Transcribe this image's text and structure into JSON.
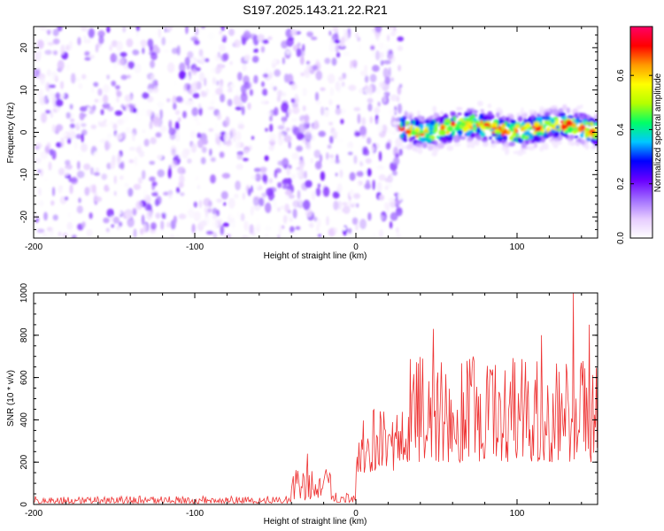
{
  "figure": {
    "title": "S197.2025.143.21.22.R21"
  },
  "chart_data": [
    {
      "type": "heatmap",
      "title": "S197.2025.143.21.22.R21",
      "xlabel": "Height of straight line (km)",
      "ylabel": "Frequency (Hz)",
      "xlim": [
        -200,
        150
      ],
      "ylim": [
        -25,
        25
      ],
      "xticks": [
        -200,
        -100,
        0,
        100
      ],
      "yticks": [
        -20,
        -10,
        0,
        10,
        20
      ],
      "colorbar": {
        "label": "Normalized spectral amplitude",
        "range": [
          0,
          0.78
        ],
        "ticks": [
          0.0,
          0.2,
          0.4,
          0.6
        ],
        "colormap": [
          "#ffffff",
          "#e6ccff",
          "#a06cff",
          "#6a00ff",
          "#0000ff",
          "#00c8ff",
          "#00ff66",
          "#b4ff00",
          "#ffff00",
          "#ff9900",
          "#ff0000",
          "#ff0066"
        ]
      },
      "regions": {
        "noise_x_range": [
          -200,
          28
        ],
        "noise_amplitude_range": [
          0.0,
          0.2
        ],
        "signal_x_range": [
          28,
          150
        ],
        "signal_frequency_band_hz": [
          -3,
          5
        ],
        "signal_peak_frequency_hz": 1,
        "signal_peak_amplitude": 0.7
      },
      "grid": false,
      "legend": "right"
    },
    {
      "type": "line",
      "xlabel": "Height of straight line (km)",
      "ylabel": "SNR (10 * v/v)",
      "xlim": [
        -200,
        150
      ],
      "ylim": [
        0,
        1000
      ],
      "xticks": [
        -200,
        -100,
        0,
        100
      ],
      "yticks": [
        0,
        200,
        400,
        600,
        800,
        1000
      ],
      "series_color": "#ee3333",
      "segments": [
        {
          "x": [
            -200,
            -40
          ],
          "baseline": 5,
          "amplitude": 35
        },
        {
          "x": [
            -40,
            -15
          ],
          "baseline": 20,
          "amplitude": 150
        },
        {
          "x": [
            -15,
            0
          ],
          "baseline": 10,
          "amplitude": 50
        },
        {
          "x": [
            0,
            30
          ],
          "baseline": 150,
          "amplitude": 300
        },
        {
          "x": [
            30,
            150
          ],
          "baseline": 200,
          "amplitude": 500
        }
      ],
      "peaks": [
        {
          "x": -30,
          "y": 240
        },
        {
          "x": 15,
          "y": 440
        },
        {
          "x": 48,
          "y": 830
        },
        {
          "x": 115,
          "y": 800
        },
        {
          "x": 135,
          "y": 1000
        },
        {
          "x": 145,
          "y": 850
        }
      ],
      "grid": false
    }
  ]
}
